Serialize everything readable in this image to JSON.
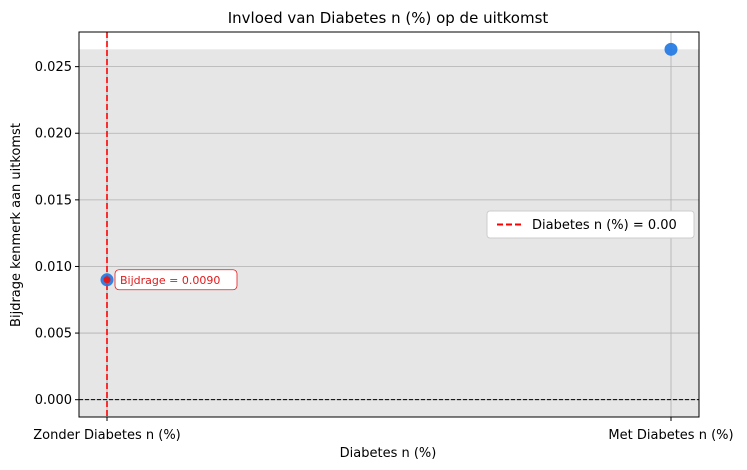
{
  "chart_data": {
    "type": "scatter",
    "title": "Invloed van Diabetes n (%) op de uitkomst",
    "xlabel": "Diabetes n (%)",
    "ylabel": "Bijdrage kenmerk aan uitkomst",
    "categories": [
      "Zonder Diabetes n (%)",
      "Met Diabetes n (%)"
    ],
    "points": [
      {
        "category": "Zonder Diabetes n (%)",
        "y": 0.009
      },
      {
        "category": "Met Diabetes n (%)",
        "y": 0.0263
      }
    ],
    "ylim": [
      -0.0013,
      0.0276
    ],
    "yticks": [
      "0.000",
      "0.005",
      "0.010",
      "0.015",
      "0.020",
      "0.025"
    ],
    "ytick_values": [
      0,
      0.005,
      0.01,
      0.015,
      0.02,
      0.025
    ],
    "shaded_band": {
      "y_from": -0.0013,
      "y_to": 0.0263,
      "color": "#e6e6e6"
    },
    "reference_line": {
      "category": "Zonder Diabetes n (%)",
      "label": "Diabetes n (%) = 0.00",
      "color": "#ff0000",
      "style": "dashed"
    },
    "zero_line": {
      "y": 0,
      "color": "#000000",
      "style": "dashed"
    },
    "annotation": {
      "text": "Bijdrage = 0.0090",
      "color": "#e31a1c"
    },
    "marker_color": "#1f77e4",
    "highlight_color": "#e31a1c",
    "grid": true,
    "legend": {
      "placement": "center-right",
      "entries": [
        "Diabetes n (%) = 0.00"
      ]
    }
  }
}
